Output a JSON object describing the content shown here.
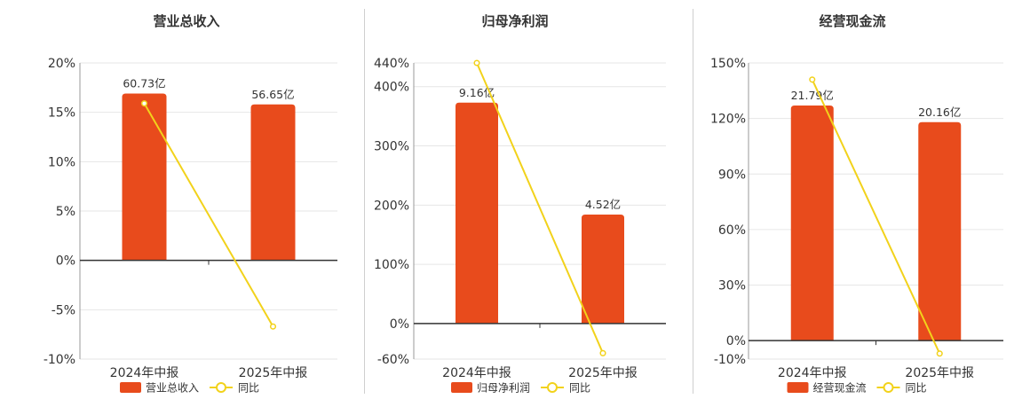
{
  "colors": {
    "bar": "#E84B1C",
    "line": "#F2D21B",
    "axis": "#333333",
    "grid": "#e6e6e6",
    "text": "#333333"
  },
  "chart_data": [
    {
      "type": "bar",
      "title": "营业总收入",
      "categories": [
        "2024年中报",
        "2025年中报"
      ],
      "series": [
        {
          "name": "营业总收入",
          "type": "bar",
          "values": [
            16.9,
            15.8
          ],
          "labels": [
            "60.73亿",
            "56.65亿"
          ]
        },
        {
          "name": "同比",
          "type": "line",
          "values": [
            15.9,
            -6.7
          ]
        }
      ],
      "yticks": [
        20,
        15,
        10,
        5,
        0,
        -5,
        -10
      ],
      "ytick_labels": [
        "20%",
        "15%",
        "10%",
        "5%",
        "0%",
        "-5%",
        "-10%"
      ],
      "ylim": [
        -10,
        20
      ],
      "grid": true,
      "legend": "bottom"
    },
    {
      "type": "bar",
      "title": "归母净利润",
      "categories": [
        "2024年中报",
        "2025年中报"
      ],
      "series": [
        {
          "name": "归母净利润",
          "type": "bar",
          "values": [
            373,
            184
          ],
          "labels": [
            "9.16亿",
            "4.52亿"
          ]
        },
        {
          "name": "同比",
          "type": "line",
          "values": [
            440,
            -50
          ]
        }
      ],
      "yticks": [
        440,
        400,
        300,
        200,
        100,
        0,
        -60
      ],
      "ytick_labels": [
        "440%",
        "400%",
        "300%",
        "200%",
        "100%",
        "0%",
        "-60%"
      ],
      "ylim": [
        -60,
        440
      ],
      "grid": true,
      "legend": "bottom"
    },
    {
      "type": "bar",
      "title": "经营现金流",
      "categories": [
        "2024年中报",
        "2025年中报"
      ],
      "series": [
        {
          "name": "经营现金流",
          "type": "bar",
          "values": [
            127,
            118
          ],
          "labels": [
            "21.79亿",
            "20.16亿"
          ]
        },
        {
          "name": "同比",
          "type": "line",
          "values": [
            141,
            -7
          ]
        }
      ],
      "yticks": [
        150,
        120,
        90,
        60,
        30,
        0,
        -10
      ],
      "ytick_labels": [
        "150%",
        "120%",
        "90%",
        "60%",
        "30%",
        "0%",
        "-10%"
      ],
      "ylim": [
        -10,
        150
      ],
      "grid": true,
      "legend": "bottom"
    }
  ]
}
